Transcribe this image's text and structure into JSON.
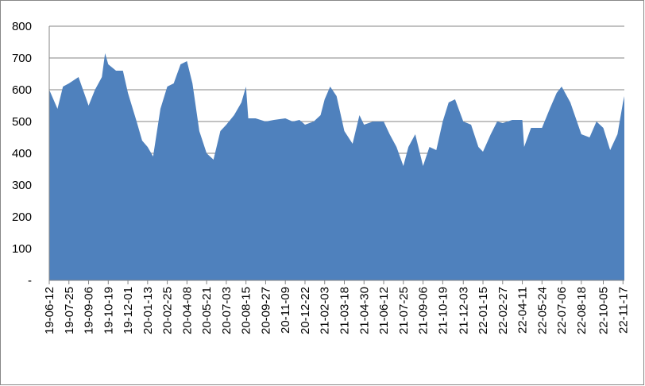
{
  "chart_data": {
    "type": "area",
    "color": "#4f81bd",
    "grid": true,
    "x": [
      "19-06-12",
      "19-06-30",
      "19-07-12",
      "19-07-25",
      "19-08-15",
      "19-09-06",
      "19-09-20",
      "19-10-05",
      "19-10-12",
      "19-10-19",
      "19-11-05",
      "19-11-20",
      "19-12-01",
      "19-12-20",
      "20-01-01",
      "20-01-13",
      "20-01-25",
      "20-02-10",
      "20-02-25",
      "20-03-10",
      "20-03-25",
      "20-04-08",
      "20-04-20",
      "20-05-05",
      "20-05-21",
      "20-06-05",
      "20-06-20",
      "20-07-03",
      "20-07-20",
      "20-08-05",
      "20-08-15",
      "20-08-20",
      "20-09-05",
      "20-09-27",
      "20-10-15",
      "20-11-09",
      "20-11-25",
      "20-12-10",
      "20-12-22",
      "21-01-10",
      "21-01-25",
      "21-02-03",
      "21-02-15",
      "21-03-01",
      "21-03-18",
      "21-04-05",
      "21-04-20",
      "21-04-30",
      "21-05-20",
      "21-06-12",
      "21-06-25",
      "21-07-10",
      "21-07-25",
      "21-08-05",
      "21-08-20",
      "21-09-06",
      "21-09-20",
      "21-10-05",
      "21-10-19",
      "21-11-01",
      "21-11-15",
      "21-12-03",
      "21-12-20",
      "22-01-05",
      "22-01-15",
      "22-02-01",
      "22-02-15",
      "22-02-27",
      "22-03-20",
      "22-04-11",
      "22-04-15",
      "22-04-30",
      "22-05-24",
      "22-06-10",
      "22-06-25",
      "22-07-06",
      "22-07-25",
      "22-08-18",
      "22-09-05",
      "22-09-20",
      "22-10-05",
      "22-10-20",
      "22-11-05",
      "22-11-17",
      "22-11-20"
    ],
    "values": [
      600,
      540,
      610,
      620,
      640,
      550,
      600,
      640,
      715,
      680,
      660,
      660,
      590,
      500,
      440,
      420,
      390,
      540,
      610,
      620,
      680,
      690,
      620,
      470,
      400,
      380,
      470,
      490,
      520,
      560,
      610,
      510,
      510,
      500,
      505,
      510,
      500,
      505,
      490,
      500,
      520,
      570,
      610,
      580,
      470,
      430,
      520,
      490,
      500,
      500,
      460,
      420,
      360,
      420,
      460,
      360,
      420,
      410,
      500,
      560,
      570,
      500,
      490,
      420,
      405,
      460,
      500,
      495,
      505,
      505,
      420,
      480,
      480,
      540,
      590,
      610,
      560,
      460,
      450,
      500,
      480,
      410,
      460,
      560,
      580
    ],
    "xlim": [
      "19-06-12",
      "22-11-20"
    ],
    "xticks": [
      "19-06-12",
      "19-07-25",
      "19-09-06",
      "19-10-19",
      "19-12-01",
      "20-01-13",
      "20-02-25",
      "20-04-08",
      "20-05-21",
      "20-07-03",
      "20-08-15",
      "20-09-27",
      "20-11-09",
      "20-12-22",
      "21-02-03",
      "21-03-18",
      "21-04-30",
      "21-06-12",
      "21-07-25",
      "21-09-06",
      "21-10-19",
      "21-12-03",
      "22-01-15",
      "22-02-27",
      "22-04-11",
      "22-05-24",
      "22-07-06",
      "22-08-18",
      "22-10-05",
      "22-11-17"
    ],
    "ylim": [
      0,
      800
    ],
    "yticks": [
      {
        "value": 0,
        "label": "-"
      },
      100,
      200,
      300,
      400,
      500,
      600,
      700,
      800
    ]
  }
}
